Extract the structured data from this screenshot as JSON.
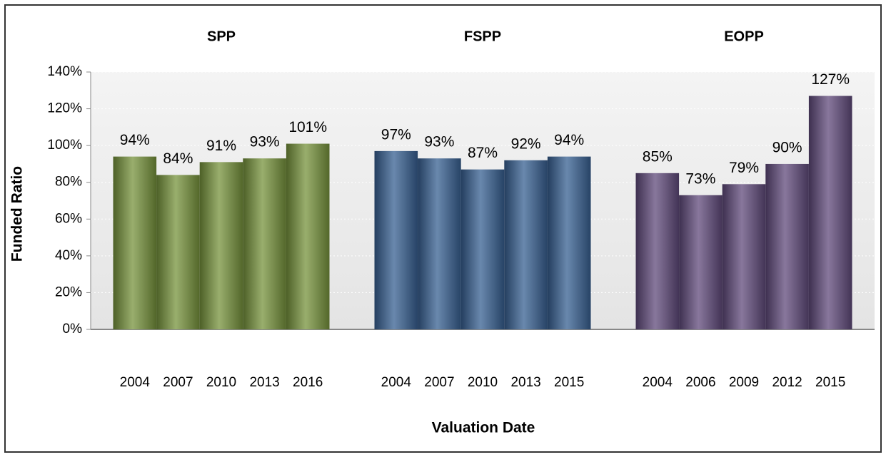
{
  "chart_data": {
    "type": "bar",
    "xlabel": "Valuation Date",
    "ylabel": "Funded Ratio",
    "ylim": [
      0,
      140
    ],
    "yticks": [
      {
        "value": 0,
        "label": "0%"
      },
      {
        "value": 20,
        "label": "20%"
      },
      {
        "value": 40,
        "label": "40%"
      },
      {
        "value": 60,
        "label": "60%"
      },
      {
        "value": 80,
        "label": "80%"
      },
      {
        "value": 100,
        "label": "100%"
      },
      {
        "value": 120,
        "label": "120%"
      },
      {
        "value": 140,
        "label": "140%"
      }
    ],
    "grid": true,
    "series": [
      {
        "name": "SPP",
        "color": "#77933c",
        "categories": [
          "2004",
          "2007",
          "2010",
          "2013",
          "2016"
        ],
        "values": [
          94,
          84,
          91,
          93,
          101
        ],
        "value_labels": [
          "94%",
          "84%",
          "91%",
          "93%",
          "101%"
        ]
      },
      {
        "name": "FSPP",
        "color": "#376092",
        "categories": [
          "2004",
          "2007",
          "2010",
          "2013",
          "2015"
        ],
        "values": [
          97,
          93,
          87,
          92,
          94
        ],
        "value_labels": [
          "97%",
          "93%",
          "87%",
          "92%",
          "94%"
        ]
      },
      {
        "name": "EOPP",
        "color": "#604a7b",
        "categories": [
          "2004",
          "2006",
          "2009",
          "2012",
          "2015"
        ],
        "values": [
          85,
          73,
          79,
          90,
          127
        ],
        "value_labels": [
          "85%",
          "73%",
          "79%",
          "90%",
          "127%"
        ]
      }
    ]
  }
}
